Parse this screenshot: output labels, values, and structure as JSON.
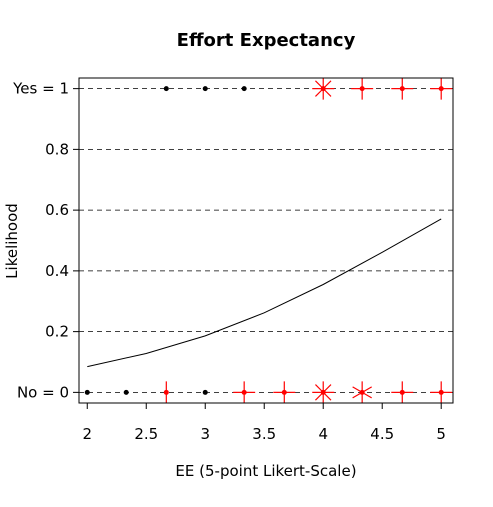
{
  "chart_data": {
    "type": "scatter",
    "title": "Effort Expectancy",
    "xlabel": "EE (5-point Likert-Scale)",
    "ylabel": "Likelihood",
    "xlim": [
      1.93,
      5.1
    ],
    "ylim": [
      -0.035,
      1.035
    ],
    "x_ticks": [
      2,
      2.5,
      3,
      3.5,
      4,
      4.5,
      5
    ],
    "x_tick_labels": [
      "2",
      "2.5",
      "3",
      "3.5",
      "4",
      "4.5",
      "5"
    ],
    "y_ticks": [
      0,
      0.2,
      0.4,
      0.6,
      0.8,
      1
    ],
    "y_tick_labels": [
      "No = 0",
      "0.2",
      "0.4",
      "0.6",
      "0.8",
      "Yes = 1"
    ],
    "grid": "horizontal dashed",
    "series": [
      {
        "marker": "dot",
        "color": "#000000",
        "points": [
          {
            "x": 2,
            "y": 0
          },
          {
            "x": 2.33,
            "y": 0
          },
          {
            "x": 3,
            "y": 0
          },
          {
            "x": 2.67,
            "y": 1
          },
          {
            "x": 3,
            "y": 1
          },
          {
            "x": 3.33,
            "y": 1
          }
        ]
      },
      {
        "marker": "sunflower",
        "color": "#ff0000",
        "points": [
          {
            "x": 2.67,
            "y": 0,
            "count": 2
          },
          {
            "x": 3.33,
            "y": 0,
            "count": 4
          },
          {
            "x": 3.67,
            "y": 0,
            "count": 4
          },
          {
            "x": 4,
            "y": 0,
            "count": 8
          },
          {
            "x": 4.33,
            "y": 0,
            "count": 6
          },
          {
            "x": 4.67,
            "y": 0,
            "count": 4
          },
          {
            "x": 5,
            "y": 0,
            "count": 4
          },
          {
            "x": 4,
            "y": 1,
            "count": 8
          },
          {
            "x": 4.33,
            "y": 1,
            "count": 4
          },
          {
            "x": 4.67,
            "y": 1,
            "count": 4
          },
          {
            "x": 5,
            "y": 1,
            "count": 4
          }
        ]
      }
    ],
    "fitted_curve": {
      "type": "logistic",
      "color": "#000000",
      "x": [
        2,
        2.5,
        3,
        3.5,
        4,
        4.5,
        5
      ],
      "y": [
        0.085,
        0.128,
        0.186,
        0.262,
        0.355,
        0.461,
        0.571
      ]
    }
  }
}
